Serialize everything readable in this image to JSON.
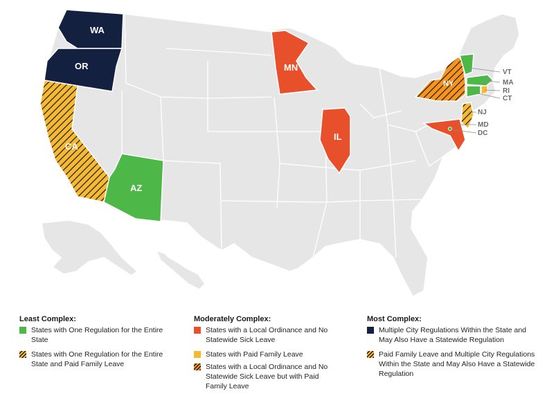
{
  "colors": {
    "base_state": "#e6e6e6",
    "border": "#ffffff",
    "green": "#4db848",
    "red": "#e8502b",
    "yellow": "#f5b933",
    "orange": "#f7941d",
    "navy": "#13203f",
    "hatch_line": "#1a1a1a"
  },
  "map": {
    "states": [
      {
        "abbr": "WA",
        "category": "most-complex-multiple-city"
      },
      {
        "abbr": "OR",
        "category": "most-complex-multiple-city"
      },
      {
        "abbr": "CA",
        "category": "least-complex-one-regulation-paid-family-leave"
      },
      {
        "abbr": "AZ",
        "category": "least-complex-one-regulation"
      },
      {
        "abbr": "MN",
        "category": "moderate-local-ordinance"
      },
      {
        "abbr": "IL",
        "category": "moderate-local-ordinance"
      },
      {
        "abbr": "NY",
        "category": "moderate-local-ordinance-paid-family-leave"
      },
      {
        "abbr": "VT",
        "category": "least-complex-one-regulation"
      },
      {
        "abbr": "MA",
        "category": "least-complex-one-regulation"
      },
      {
        "abbr": "RI",
        "category": "least-complex-one-regulation-paid-family-leave"
      },
      {
        "abbr": "CT",
        "category": "least-complex-one-regulation"
      },
      {
        "abbr": "NJ",
        "category": "least-complex-one-regulation-paid-family-leave"
      },
      {
        "abbr": "MD",
        "category": "moderate-local-ordinance"
      },
      {
        "abbr": "DC",
        "category": "least-complex-one-regulation"
      }
    ],
    "labels": {
      "wa": "WA",
      "or": "OR",
      "ca": "CA",
      "az": "AZ",
      "mn": "MN",
      "il": "IL",
      "ny": "NY",
      "vt": "VT",
      "ma": "MA",
      "ri": "RI",
      "ct": "CT",
      "nj": "NJ",
      "md": "MD",
      "dc": "DC"
    }
  },
  "legend": {
    "least": {
      "heading": "Least Complex:",
      "items": [
        {
          "swatch": "green",
          "text": "States with One Regulation for the Entire State"
        },
        {
          "swatch": "hatch-yellow",
          "text": "States with One Regulation for the Entire State and Paid Family Leave"
        }
      ]
    },
    "moderate": {
      "heading": "Moderately Complex:",
      "items": [
        {
          "swatch": "red",
          "text": "States with a Local Ordinance and No Statewide Sick Leave"
        },
        {
          "swatch": "yellow",
          "text": "States with Paid Family Leave"
        },
        {
          "swatch": "hatch-orange",
          "text": "States with a Local Ordinance and No Statewide Sick Leave but with Paid Family Leave"
        }
      ]
    },
    "most": {
      "heading": "Most Complex:",
      "items": [
        {
          "swatch": "navy",
          "text": "Multiple City Regulations Within the State and May Also Have a Statewide Regulation"
        },
        {
          "swatch": "hatch-yellow",
          "text": "Paid Family Leave and Multiple City Regulations Within the State and May Also Have a Statewide Regulation"
        }
      ]
    }
  }
}
